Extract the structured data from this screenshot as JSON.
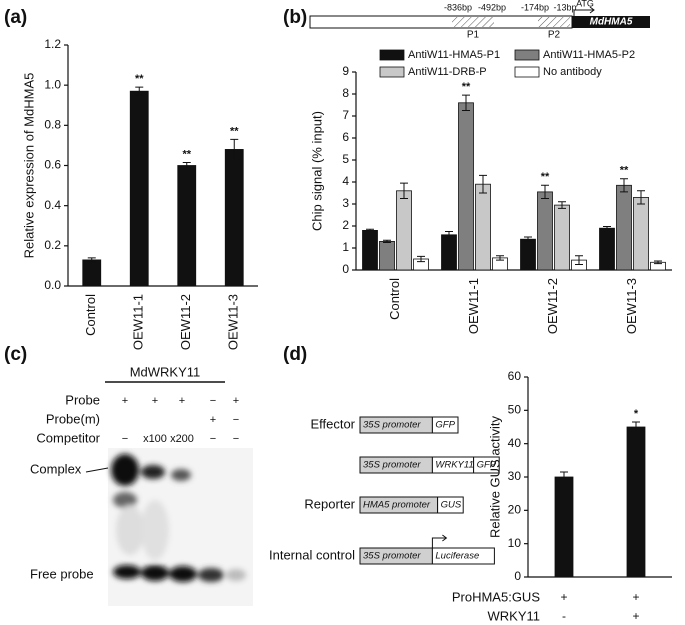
{
  "panel_labels": [
    "(a)",
    "(b)",
    "(c)",
    "(d)"
  ],
  "promoter_map": {
    "positions": [
      "-836bp",
      "-492bp",
      "-174bp",
      "-13bp"
    ],
    "regions": [
      "P1",
      "P2"
    ],
    "start": "ATG",
    "gene": "MdHMA5"
  },
  "gel": {
    "title": "MdWRKY11",
    "rows": [
      {
        "label": "Probe",
        "lanes": [
          "+",
          "+",
          "+",
          "−",
          "+"
        ]
      },
      {
        "label": "Probe(m)",
        "lanes": [
          null,
          null,
          null,
          "+",
          "−"
        ]
      },
      {
        "label": "Competitor",
        "lanes": [
          "−",
          "x100",
          "x200",
          "−",
          "−"
        ]
      }
    ],
    "bands": [
      "Complex",
      "Free probe"
    ]
  },
  "constructs": {
    "rows": [
      {
        "label": "Effector",
        "parts": [
          "35S promoter",
          "GFP"
        ]
      },
      {
        "label": null,
        "parts": [
          "35S promoter",
          "WRKY11",
          "GFP"
        ]
      },
      {
        "label": "Reporter",
        "parts": [
          "HMA5 promoter",
          "GUS"
        ]
      },
      {
        "label": "Internal control",
        "parts": [
          "35S promoter",
          "Luciferase"
        ]
      }
    ]
  },
  "chart_data": [
    {
      "type": "bar",
      "y_label": "Relative expression of MdHMA5",
      "categories": [
        "Control",
        "OEW11-1",
        "OEW11-2",
        "OEW11-3"
      ],
      "values": [
        0.13,
        0.97,
        0.6,
        0.68
      ],
      "errors": [
        0.01,
        0.02,
        0.015,
        0.05
      ],
      "significance": [
        null,
        "**",
        "**",
        "**"
      ],
      "color": "#111111",
      "ylim": [
        0,
        1.2
      ],
      "yticks": [
        {
          "value": 0,
          "label": "0.0"
        },
        0.2,
        0.4,
        0.6,
        0.8,
        {
          "value": 1,
          "label": "1.0"
        },
        1.2
      ]
    },
    {
      "type": "bar",
      "y_label": "Chip signal (% input)",
      "categories": [
        "Control",
        "OEW11-1",
        "OEW11-2",
        "OEW11-3"
      ],
      "series": [
        {
          "name": "AntiW11-HMA5-P1",
          "color": "#111111",
          "values": [
            1.8,
            1.6,
            1.4,
            1.9
          ],
          "errors": [
            0.05,
            0.15,
            0.1,
            0.08
          ]
        },
        {
          "name": "AntiW11-HMA5-P2",
          "color": "#7f7f7f",
          "values": [
            1.3,
            7.6,
            3.55,
            3.85
          ],
          "errors": [
            0.05,
            0.35,
            0.3,
            0.3
          ],
          "significance": [
            null,
            "**",
            "**",
            "**"
          ]
        },
        {
          "name": "AntiW11-DRB-P",
          "color": "#c8c8c8",
          "values": [
            3.6,
            3.9,
            2.95,
            3.3
          ],
          "errors": [
            0.35,
            0.4,
            0.15,
            0.3
          ]
        },
        {
          "name": "No antibody",
          "color": "#ffffff",
          "values": [
            0.5,
            0.55,
            0.45,
            0.35
          ],
          "errors": [
            0.12,
            0.1,
            0.2,
            0.06
          ]
        }
      ],
      "ylim": [
        0,
        9
      ],
      "yticks": [
        0,
        1,
        2,
        3,
        4,
        5,
        6,
        7,
        8,
        9
      ]
    },
    {
      "type": "bar",
      "y_label": "Relative GUS activity",
      "categories": [
        null,
        null
      ],
      "conditions": [
        {
          "name": "ProHMA5:GUS",
          "values": [
            "+",
            "+"
          ]
        },
        {
          "name": "WRKY11",
          "values": [
            "-",
            "+"
          ]
        }
      ],
      "values": [
        30,
        45
      ],
      "errors": [
        1.5,
        1.5
      ],
      "significance": [
        null,
        "*"
      ],
      "color": "#111111",
      "ylim": [
        0,
        60
      ],
      "yticks": [
        0,
        10,
        20,
        30,
        40,
        50,
        60
      ]
    }
  ]
}
